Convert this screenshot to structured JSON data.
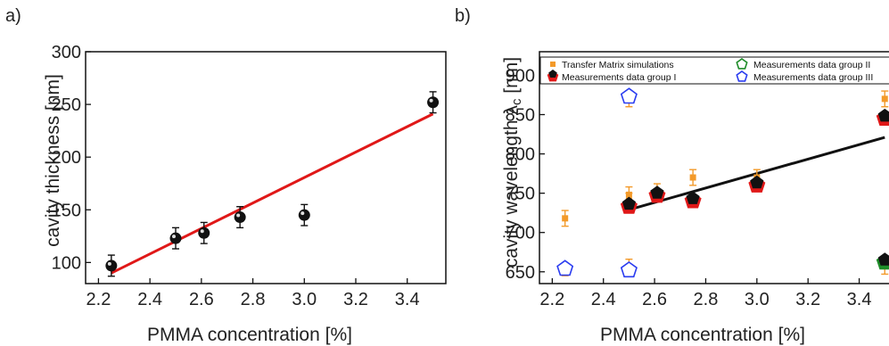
{
  "chart_data": [
    {
      "panel_label": "a)",
      "type": "scatter",
      "xlabel": "PMMA concentration [%]",
      "ylabel": "cavity thickness [nm]",
      "xlim": [
        2.15,
        3.55
      ],
      "ylim": [
        80,
        300
      ],
      "xticks": [
        "2.2",
        "2.4",
        "2.6",
        "2.8",
        "3.0",
        "3.2",
        "3.4"
      ],
      "yticks": [
        "100",
        "150",
        "200",
        "250",
        "300"
      ],
      "grid": false,
      "series": [
        {
          "kind": "points",
          "color": "#111111",
          "x": [
            2.25,
            2.5,
            2.61,
            2.75,
            3.0,
            3.5
          ],
          "y": [
            97,
            123,
            128,
            143,
            145,
            252
          ],
          "err": [
            10,
            10,
            10,
            10,
            10,
            10
          ]
        },
        {
          "kind": "fit-line",
          "color": "#e01818",
          "x": [
            2.25,
            3.5
          ],
          "y": [
            90,
            241
          ]
        }
      ]
    },
    {
      "panel_label": "b)",
      "type": "scatter",
      "xlabel": "PMMA concentration [%]",
      "ylabel": "cavity wavelength λ",
      "ylabel_sub": "c",
      "ylabel_unit": " [nm]",
      "xlim": [
        2.15,
        3.52
      ],
      "ylim": [
        635,
        930
      ],
      "xticks": [
        "2.2",
        "2.4",
        "2.6",
        "2.8",
        "3.0",
        "3.2",
        "3.4"
      ],
      "yticks": [
        "650",
        "700",
        "750",
        "800",
        "850",
        "900"
      ],
      "grid": false,
      "legend_position": "top",
      "series": [
        {
          "name": "Transfer Matrix simulations",
          "marker": "square",
          "color": "#f39a2a",
          "x": [
            2.25,
            2.25,
            2.5,
            2.5,
            2.5,
            2.5,
            2.61,
            2.75,
            3.0,
            3.5,
            3.5
          ],
          "y": [
            718,
            649,
            748,
            870,
            656,
            740,
            752,
            770,
            770,
            870,
            657
          ],
          "err": [
            10,
            4,
            10,
            10,
            10,
            10,
            10,
            10,
            10,
            10,
            10
          ]
        },
        {
          "name": "Measurements data group I",
          "marker": "pentagon",
          "color": "#e01818",
          "x": [
            2.5,
            2.61,
            2.75,
            3.0,
            3.5
          ],
          "y": [
            733,
            747,
            740,
            760,
            845
          ]
        },
        {
          "name": "Measurements data group II",
          "marker": "pentagon",
          "color": "#1e8c28",
          "x": [
            3.5
          ],
          "y": [
            662
          ]
        },
        {
          "name": "Measurements data group III",
          "marker": "pentagon",
          "color": "#2a3cf0",
          "x": [
            2.25,
            2.5,
            2.5
          ],
          "y": [
            654,
            652,
            873
          ]
        },
        {
          "kind": "fit-line",
          "color": "#111111",
          "x": [
            2.5,
            3.5
          ],
          "y": [
            729,
            821
          ]
        }
      ]
    }
  ]
}
